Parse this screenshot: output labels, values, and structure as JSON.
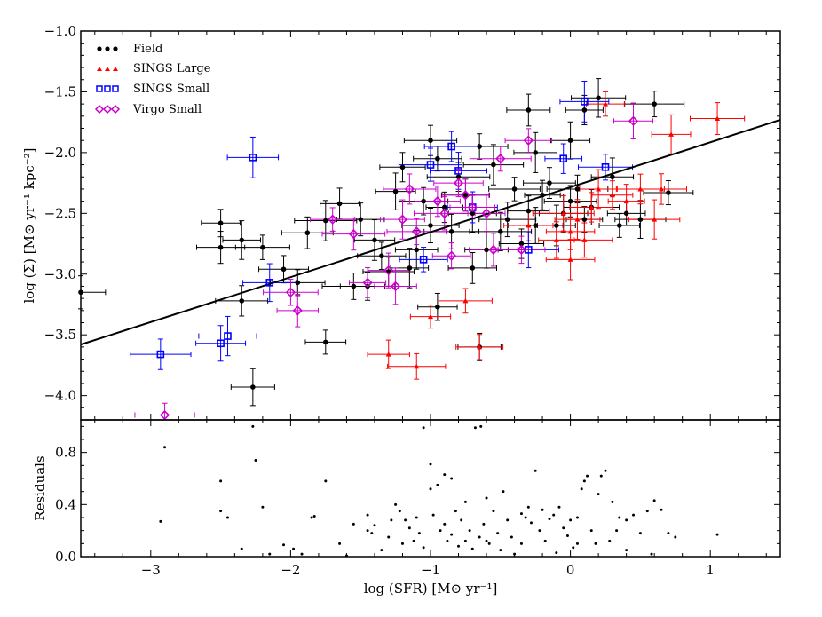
{
  "chart_data": [
    {
      "panel": "main",
      "type": "scatter",
      "xlim": [
        -3.5,
        1.5
      ],
      "ylim": [
        -4.2,
        -1.0
      ],
      "ylabel": "log (Σ)  [M⊙ yr⁻¹ kpc⁻²]",
      "xticks": [
        "−3",
        "−2",
        "−1",
        "0",
        "1"
      ],
      "yticks": [
        "−4.0",
        "−3.5",
        "−3.0",
        "−2.5",
        "−2.0",
        "−1.5",
        "−1.0"
      ],
      "fit_line": {
        "x": [
          -3.5,
          1.5
        ],
        "y": [
          -3.58,
          -1.73
        ]
      },
      "legend": [
        "Field",
        "SINGS Large",
        "SINGS Small",
        "Virgo Small"
      ],
      "series": [
        {
          "name": "Field",
          "marker": "circle",
          "color": "#000000",
          "points": [
            [
              -3.5,
              -3.15
            ],
            [
              -2.5,
              -2.58
            ],
            [
              -2.5,
              -2.78
            ],
            [
              -2.35,
              -2.72
            ],
            [
              -2.35,
              -3.22
            ],
            [
              -2.27,
              -3.93
            ],
            [
              -2.2,
              -2.78
            ],
            [
              -2.05,
              -2.96
            ],
            [
              -1.95,
              -3.07
            ],
            [
              -1.88,
              -2.66
            ],
            [
              -1.75,
              -3.56
            ],
            [
              -1.75,
              -2.56
            ],
            [
              -1.65,
              -2.42
            ],
            [
              -1.55,
              -3.1
            ],
            [
              -1.5,
              -2.55
            ],
            [
              -1.45,
              -3.1
            ],
            [
              -1.4,
              -2.72
            ],
            [
              -1.35,
              -2.85
            ],
            [
              -1.3,
              -2.98
            ],
            [
              -1.25,
              -2.32
            ],
            [
              -1.2,
              -2.12
            ],
            [
              -1.15,
              -2.95
            ],
            [
              -1.1,
              -2.8
            ],
            [
              -1.05,
              -2.4
            ],
            [
              -1.0,
              -1.9
            ],
            [
              -1.0,
              -2.6
            ],
            [
              -0.95,
              -3.27
            ],
            [
              -0.95,
              -2.05
            ],
            [
              -0.9,
              -2.45
            ],
            [
              -0.85,
              -2.65
            ],
            [
              -0.8,
              -2.2
            ],
            [
              -0.75,
              -2.35
            ],
            [
              -0.7,
              -2.5
            ],
            [
              -0.7,
              -2.95
            ],
            [
              -0.65,
              -3.6
            ],
            [
              -0.65,
              -1.95
            ],
            [
              -0.6,
              -2.8
            ],
            [
              -0.55,
              -2.1
            ],
            [
              -0.5,
              -2.65
            ],
            [
              -0.45,
              -2.55
            ],
            [
              -0.4,
              -2.3
            ],
            [
              -0.35,
              -2.75
            ],
            [
              -0.3,
              -2.48
            ],
            [
              -0.25,
              -2.6
            ],
            [
              -0.25,
              -2.0
            ],
            [
              -0.2,
              -2.35
            ],
            [
              -0.15,
              -2.25
            ],
            [
              -0.1,
              -2.6
            ],
            [
              -0.05,
              -2.5
            ],
            [
              0.0,
              -2.4
            ],
            [
              0.0,
              -1.9
            ],
            [
              0.05,
              -2.3
            ],
            [
              0.1,
              -2.55
            ],
            [
              0.15,
              -2.45
            ],
            [
              0.2,
              -1.55
            ],
            [
              0.3,
              -2.2
            ],
            [
              0.35,
              -2.6
            ],
            [
              0.4,
              -2.5
            ],
            [
              0.5,
              -2.55
            ],
            [
              0.6,
              -1.6
            ],
            [
              0.7,
              -2.33
            ],
            [
              -0.3,
              -1.65
            ],
            [
              0.1,
              -1.65
            ]
          ]
        },
        {
          "name": "SINGS Large",
          "marker": "triangle",
          "color": "#ff0000",
          "points": [
            [
              -1.3,
              -3.66
            ],
            [
              -1.1,
              -3.76
            ],
            [
              -1.0,
              -3.35
            ],
            [
              -0.75,
              -3.22
            ],
            [
              -0.65,
              -3.6
            ],
            [
              -0.3,
              -2.6
            ],
            [
              -0.1,
              -2.72
            ],
            [
              0.0,
              -2.65
            ],
            [
              0.05,
              -2.55
            ],
            [
              0.1,
              -2.72
            ],
            [
              0.15,
              -2.45
            ],
            [
              0.2,
              -2.3
            ],
            [
              0.25,
              -1.6
            ],
            [
              0.3,
              -2.35
            ],
            [
              0.4,
              -2.4
            ],
            [
              0.5,
              -2.3
            ],
            [
              0.6,
              -2.55
            ],
            [
              0.65,
              -2.3
            ],
            [
              0.72,
              -1.85
            ],
            [
              1.05,
              -1.72
            ],
            [
              -0.05,
              -2.5
            ],
            [
              0.0,
              -2.88
            ]
          ]
        },
        {
          "name": "SINGS Small",
          "marker": "square",
          "color": "#0000ff",
          "points": [
            [
              -2.93,
              -3.66
            ],
            [
              -2.5,
              -3.57
            ],
            [
              -2.45,
              -3.51
            ],
            [
              -2.27,
              -2.04
            ],
            [
              -2.15,
              -3.07
            ],
            [
              -1.05,
              -2.88
            ],
            [
              -1.0,
              -2.1
            ],
            [
              -0.85,
              -1.95
            ],
            [
              -0.8,
              -2.15
            ],
            [
              -0.7,
              -2.45
            ],
            [
              -0.3,
              -2.8
            ],
            [
              -0.05,
              -2.05
            ],
            [
              0.1,
              -1.58
            ],
            [
              0.25,
              -2.12
            ]
          ]
        },
        {
          "name": "Virgo Small",
          "marker": "diamond",
          "color": "#cc00cc",
          "points": [
            [
              -2.0,
              -3.15
            ],
            [
              -1.95,
              -3.3
            ],
            [
              -1.7,
              -2.55
            ],
            [
              -1.55,
              -2.67
            ],
            [
              -1.45,
              -3.07
            ],
            [
              -1.3,
              -2.97
            ],
            [
              -1.25,
              -3.1
            ],
            [
              -1.2,
              -2.55
            ],
            [
              -1.15,
              -2.3
            ],
            [
              -1.1,
              -2.65
            ],
            [
              -0.95,
              -2.4
            ],
            [
              -0.9,
              -2.5
            ],
            [
              -0.85,
              -2.85
            ],
            [
              -0.8,
              -2.25
            ],
            [
              -0.75,
              -2.35
            ],
            [
              -0.7,
              -2.45
            ],
            [
              -0.6,
              -2.5
            ],
            [
              -0.55,
              -2.8
            ],
            [
              -0.5,
              -2.05
            ],
            [
              -0.35,
              -2.8
            ],
            [
              -0.3,
              -1.9
            ],
            [
              0.45,
              -1.74
            ],
            [
              -2.9,
              -4.16
            ]
          ]
        }
      ]
    },
    {
      "panel": "residuals",
      "type": "scatter",
      "xlim": [
        -3.5,
        1.5
      ],
      "ylim": [
        0.0,
        1.05
      ],
      "xlabel": "log (SFR)  [M⊙ yr⁻¹]",
      "ylabel": "Residuals",
      "xticks": [
        "−3",
        "−2",
        "−1",
        "0",
        "1"
      ],
      "yticks": [
        "0.0",
        "0.4",
        "0.8"
      ],
      "points": [
        [
          -2.93,
          0.27
        ],
        [
          -2.9,
          0.84
        ],
        [
          -2.5,
          0.58
        ],
        [
          -2.5,
          0.35
        ],
        [
          -2.45,
          0.3
        ],
        [
          -2.35,
          0.06
        ],
        [
          -2.27,
          1.0
        ],
        [
          -2.25,
          0.74
        ],
        [
          -2.2,
          0.38
        ],
        [
          -2.15,
          0.02
        ],
        [
          -2.05,
          0.09
        ],
        [
          -1.98,
          0.06
        ],
        [
          -1.92,
          0.02
        ],
        [
          -1.85,
          0.3
        ],
        [
          -1.83,
          0.31
        ],
        [
          -1.75,
          0.58
        ],
        [
          -1.65,
          0.1
        ],
        [
          -1.6,
          0.0
        ],
        [
          -1.55,
          0.25
        ],
        [
          -1.45,
          0.32
        ],
        [
          -1.45,
          0.2
        ],
        [
          -1.42,
          0.18
        ],
        [
          -1.4,
          0.24
        ],
        [
          -1.35,
          0.05
        ],
        [
          -1.3,
          0.15
        ],
        [
          -1.28,
          0.28
        ],
        [
          -1.25,
          0.4
        ],
        [
          -1.22,
          0.35
        ],
        [
          -1.2,
          0.1
        ],
        [
          -1.18,
          0.28
        ],
        [
          -1.15,
          0.22
        ],
        [
          -1.12,
          0.12
        ],
        [
          -1.1,
          0.3
        ],
        [
          -1.08,
          0.18
        ],
        [
          -1.05,
          0.07
        ],
        [
          -1.05,
          0.99
        ],
        [
          -1.0,
          0.71
        ],
        [
          -1.0,
          0.52
        ],
        [
          -0.98,
          0.32
        ],
        [
          -0.95,
          0.55
        ],
        [
          -0.93,
          0.2
        ],
        [
          -0.9,
          0.63
        ],
        [
          -0.9,
          0.25
        ],
        [
          -0.88,
          0.12
        ],
        [
          -0.85,
          0.6
        ],
        [
          -0.85,
          0.17
        ],
        [
          -0.82,
          0.35
        ],
        [
          -0.8,
          0.08
        ],
        [
          -0.78,
          0.28
        ],
        [
          -0.75,
          0.42
        ],
        [
          -0.72,
          0.2
        ],
        [
          -0.7,
          0.06
        ],
        [
          -0.68,
          0.99
        ],
        [
          -0.65,
          0.15
        ],
        [
          -0.64,
          1.0
        ],
        [
          -0.62,
          0.25
        ],
        [
          -0.6,
          0.45
        ],
        [
          -0.58,
          0.1
        ],
        [
          -0.55,
          0.35
        ],
        [
          -0.52,
          0.18
        ],
        [
          -0.5,
          0.05
        ],
        [
          -0.48,
          0.5
        ],
        [
          -0.45,
          0.28
        ],
        [
          -0.42,
          0.15
        ],
        [
          -0.4,
          0.02
        ],
        [
          -0.35,
          0.33
        ],
        [
          -0.32,
          0.3
        ],
        [
          -0.3,
          0.38
        ],
        [
          -0.28,
          0.26
        ],
        [
          -0.25,
          0.66
        ],
        [
          -0.22,
          0.2
        ],
        [
          -0.2,
          0.36
        ],
        [
          -0.18,
          0.12
        ],
        [
          -0.15,
          0.29
        ],
        [
          -0.12,
          0.32
        ],
        [
          -0.1,
          0.03
        ],
        [
          -0.08,
          0.38
        ],
        [
          -0.05,
          0.22
        ],
        [
          -0.02,
          0.16
        ],
        [
          0.0,
          0.28
        ],
        [
          0.02,
          0.07
        ],
        [
          0.05,
          0.3
        ],
        [
          0.08,
          0.52
        ],
        [
          0.1,
          0.58
        ],
        [
          0.12,
          0.62
        ],
        [
          0.15,
          0.2
        ],
        [
          0.18,
          0.1
        ],
        [
          0.2,
          0.48
        ],
        [
          0.22,
          0.62
        ],
        [
          0.25,
          0.66
        ],
        [
          0.28,
          0.12
        ],
        [
          0.3,
          0.42
        ],
        [
          0.33,
          0.2
        ],
        [
          0.35,
          0.3
        ],
        [
          0.4,
          0.28
        ],
        [
          0.45,
          0.32
        ],
        [
          0.5,
          0.18
        ],
        [
          0.55,
          0.35
        ],
        [
          0.58,
          0.02
        ],
        [
          0.6,
          0.43
        ],
        [
          0.65,
          0.36
        ],
        [
          0.7,
          0.18
        ],
        [
          0.75,
          0.15
        ],
        [
          1.05,
          0.17
        ],
        [
          -0.6,
          0.12
        ],
        [
          -0.35,
          0.1
        ],
        [
          0.05,
          0.1
        ],
        [
          -0.75,
          0.12
        ],
        [
          0.4,
          0.05
        ]
      ]
    }
  ]
}
